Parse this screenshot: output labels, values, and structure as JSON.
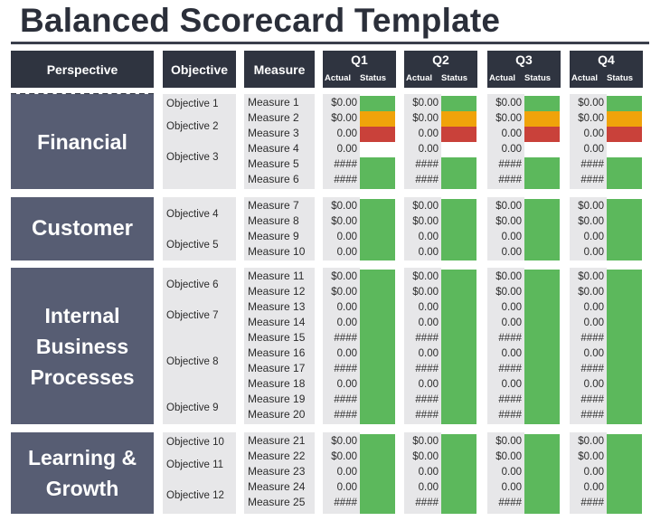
{
  "title": "Balanced Scorecard Template",
  "headers": {
    "perspective": "Perspective",
    "objective": "Objective",
    "measure": "Measure",
    "quarters": [
      "Q1",
      "Q2",
      "Q3",
      "Q4"
    ],
    "actual": "Actual",
    "status": "Status"
  },
  "status_colors": {
    "green": "#5cb85c",
    "amber": "#f0a30a",
    "red": "#c9413a"
  },
  "perspectives": [
    {
      "name": "Financial",
      "lines": [
        "Financial"
      ]
    },
    {
      "name": "Customer",
      "lines": [
        "Customer"
      ]
    },
    {
      "name": "Internal Business Processes",
      "lines": [
        "Internal",
        "Business",
        "Processes"
      ]
    },
    {
      "name": "Learning & Growth",
      "lines": [
        "Learning &",
        "Growth"
      ]
    }
  ],
  "objectives": [
    "Objective 1",
    "Objective 2",
    "Objective 3",
    "Objective 4",
    "Objective 5",
    "Objective 6",
    "Objective 7",
    "Objective 8",
    "Objective 9",
    "Objective 10",
    "Objective 11",
    "Objective 12"
  ],
  "measures": [
    "Measure 1",
    "Measure 2",
    "Measure 3",
    "Measure 4",
    "Measure 5",
    "Measure 6",
    "Measure 7",
    "Measure 8",
    "Measure 9",
    "Measure 10",
    "Measure 11",
    "Measure 12",
    "Measure 13",
    "Measure 14",
    "Measure 15",
    "Measure 16",
    "Measure 17",
    "Measure 18",
    "Measure 19",
    "Measure 20",
    "Measure 21",
    "Measure 22",
    "Measure 23",
    "Measure 24",
    "Measure 25"
  ],
  "actuals": [
    "$0.00",
    "$0.00",
    "0.00",
    "0.00",
    "####",
    "####",
    "$0.00",
    "$0.00",
    "0.00",
    "0.00",
    "$0.00",
    "$0.00",
    "0.00",
    "0.00",
    "####",
    "0.00",
    "####",
    "0.00",
    "####",
    "####",
    "$0.00",
    "$0.00",
    "0.00",
    "0.00",
    "####"
  ],
  "status": [
    "green",
    "amber",
    "red",
    "none",
    "green",
    "green",
    "green",
    "green",
    "green",
    "green",
    "green",
    "green",
    "green",
    "green",
    "green",
    "green",
    "green",
    "green",
    "green",
    "green",
    "green",
    "green",
    "green",
    "green",
    "green"
  ]
}
